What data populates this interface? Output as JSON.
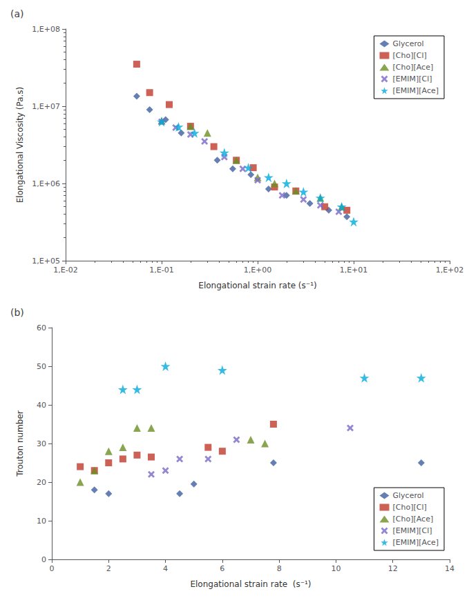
{
  "chart_data": [
    {
      "type": "scatter",
      "title": "(a)",
      "xlabel": "Elongational strain rate (s⁻¹)",
      "ylabel": "Elongational Viscosity (Pa.s)",
      "log": true,
      "xlim": [
        0.01,
        100
      ],
      "xticks": [
        {
          "value": 0.01,
          "label": "1,E-02"
        },
        {
          "value": 0.1,
          "label": "1,E-01"
        },
        {
          "value": 1,
          "label": "1,E+00"
        },
        {
          "value": 10,
          "label": "1,E+01"
        },
        {
          "value": 100,
          "label": "1,E+02"
        }
      ],
      "ylim": [
        100000,
        100000000
      ],
      "yticks": [
        {
          "value": 100000,
          "label": "1,E+05"
        },
        {
          "value": 1000000,
          "label": "1,E+06"
        },
        {
          "value": 10000000,
          "label": "1,E+07"
        },
        {
          "value": 100000000,
          "label": "1,E+08"
        }
      ],
      "grid": false,
      "legend": "upper right",
      "series": [
        {
          "name": "Glycerol",
          "color": "#3F5FA0",
          "marker": "diamond",
          "x": [
            0.055,
            0.075,
            0.11,
            0.16,
            0.38,
            0.55,
            0.85,
            1.3,
            2.0,
            3.5,
            5.5,
            8.5
          ],
          "y": [
            13500000.0,
            9000000.0,
            6700000.0,
            4500000.0,
            2000000.0,
            1550000.0,
            1300000.0,
            850000.0,
            700000.0,
            550000.0,
            450000.0,
            370000.0
          ]
        },
        {
          "name": "[Cho][Cl]",
          "color": "#C0392B",
          "marker": "square",
          "x": [
            0.055,
            0.075,
            0.12,
            0.2,
            0.35,
            0.6,
            0.9,
            1.5,
            2.5,
            5.0,
            8.5
          ],
          "y": [
            35000000.0,
            15000000.0,
            10500000.0,
            5500000.0,
            3000000.0,
            2000000.0,
            1600000.0,
            900000.0,
            800000.0,
            500000.0,
            450000.0
          ]
        },
        {
          "name": "[Cho][Ace]",
          "color": "#6B8E23",
          "marker": "triangle",
          "x": [
            0.1,
            0.2,
            0.3,
            0.6,
            1.0,
            1.5,
            2.5,
            4.5,
            7.5
          ],
          "y": [
            6500000.0,
            5500000.0,
            4500000.0,
            2000000.0,
            1200000.0,
            1000000.0,
            800000.0,
            650000.0,
            500000.0
          ]
        },
        {
          "name": "[EMIM][Cl]",
          "color": "#7B68C8",
          "marker": "x",
          "x": [
            0.1,
            0.14,
            0.2,
            0.28,
            0.45,
            0.7,
            1.0,
            1.8,
            3.0,
            4.5,
            7.0
          ],
          "y": [
            6300000.0,
            5300000.0,
            4300000.0,
            3500000.0,
            2200000.0,
            1550000.0,
            1100000.0,
            700000.0,
            620000.0,
            520000.0,
            430000.0
          ]
        },
        {
          "name": "[EMIM][Ace]",
          "color": "#00AADD",
          "marker": "star",
          "x": [
            0.1,
            0.15,
            0.22,
            0.45,
            0.8,
            1.3,
            2.0,
            3.0,
            4.5,
            7.5,
            10.0
          ],
          "y": [
            6300000.0,
            5400000.0,
            4500000.0,
            2500000.0,
            1600000.0,
            1200000.0,
            1000000.0,
            780000.0,
            650000.0,
            500000.0,
            320000.0
          ]
        }
      ]
    },
    {
      "type": "scatter",
      "title": "(b)",
      "xlabel": "Elongational strain rate  (s⁻¹)",
      "ylabel": "Trouton number",
      "xlim": [
        0,
        14
      ],
      "xticks": [
        0,
        2,
        4,
        6,
        8,
        10,
        12,
        14
      ],
      "ylim": [
        0,
        60
      ],
      "yticks": [
        0,
        10,
        20,
        30,
        40,
        50,
        60
      ],
      "grid": false,
      "legend": "lower right",
      "series": [
        {
          "name": "Glycerol",
          "color": "#3F5FA0",
          "marker": "diamond",
          "x": [
            1.5,
            2.0,
            4.5,
            5.0,
            7.8,
            13.0
          ],
          "y": [
            18,
            17,
            17,
            19.5,
            25,
            25
          ]
        },
        {
          "name": "[Cho][Cl]",
          "color": "#C0392B",
          "marker": "square",
          "x": [
            1.0,
            1.5,
            2.0,
            2.5,
            3.0,
            3.5,
            5.5,
            6.0,
            7.8
          ],
          "y": [
            24,
            23,
            25,
            26,
            27,
            26.5,
            29,
            28,
            35
          ]
        },
        {
          "name": "[Cho][Ace]",
          "color": "#6B8E23",
          "marker": "triangle",
          "x": [
            1.0,
            1.5,
            2.0,
            2.5,
            3.0,
            3.5,
            7.0,
            7.5
          ],
          "y": [
            20,
            23,
            28,
            29,
            34,
            34,
            31,
            30
          ]
        },
        {
          "name": "[EMIM][Cl]",
          "color": "#7B68C8",
          "marker": "x",
          "x": [
            3.5,
            4.0,
            4.5,
            5.5,
            6.5,
            10.5
          ],
          "y": [
            22,
            23,
            26,
            26,
            31,
            34
          ]
        },
        {
          "name": "[EMIM][Ace]",
          "color": "#00AADD",
          "marker": "star",
          "x": [
            2.5,
            3.0,
            4.0,
            6.0,
            11.0,
            13.0
          ],
          "y": [
            44,
            44,
            50,
            49,
            47,
            47
          ]
        }
      ]
    }
  ]
}
